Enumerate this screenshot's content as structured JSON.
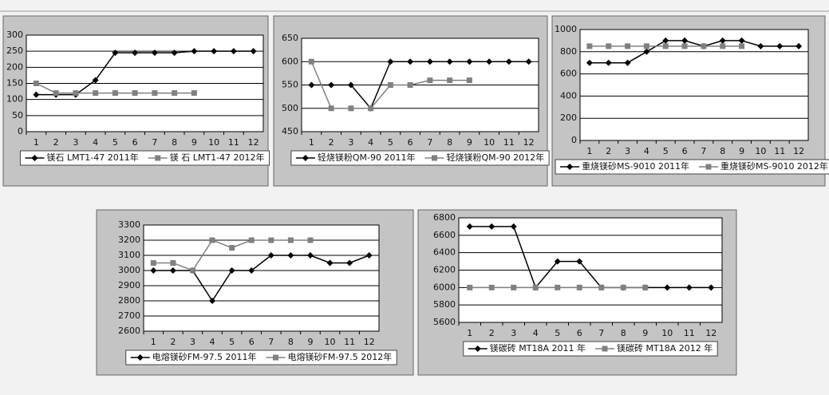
{
  "chart_data": [
    {
      "type": "line",
      "categories": [
        1,
        2,
        3,
        4,
        5,
        6,
        7,
        8,
        9,
        10,
        11,
        12
      ],
      "ylim": [
        0,
        300
      ],
      "yticks": [
        0,
        50,
        100,
        150,
        200,
        250,
        300
      ],
      "grid": true,
      "series": [
        {
          "name": "镁石 LMT1-47 2011年",
          "color": "#000000",
          "marker": "diamond",
          "values": [
            115,
            115,
            115,
            160,
            245,
            245,
            245,
            245,
            250,
            250,
            250,
            250
          ]
        },
        {
          "name": "镁 石 LMT1-47 2012年",
          "color": "#808080",
          "marker": "square",
          "values": [
            150,
            120,
            120,
            120,
            120,
            120,
            120,
            120,
            120,
            null,
            null,
            null
          ]
        }
      ]
    },
    {
      "type": "line",
      "categories": [
        1,
        2,
        3,
        4,
        5,
        6,
        7,
        8,
        9,
        10,
        11,
        12
      ],
      "ylim": [
        450,
        650
      ],
      "yticks": [
        450,
        500,
        550,
        600,
        650
      ],
      "grid": true,
      "series": [
        {
          "name": "轻烧镁粉QM-90 2011年",
          "color": "#000000",
          "marker": "diamond",
          "values": [
            550,
            550,
            550,
            500,
            600,
            600,
            600,
            600,
            600,
            600,
            600,
            600
          ]
        },
        {
          "name": "轻烧镁粉QM-90 2012年",
          "color": "#808080",
          "marker": "square",
          "values": [
            600,
            500,
            500,
            500,
            550,
            550,
            560,
            560,
            560,
            null,
            null,
            null
          ]
        }
      ]
    },
    {
      "type": "line",
      "categories": [
        1,
        2,
        3,
        4,
        5,
        6,
        7,
        8,
        9,
        10,
        11,
        12
      ],
      "ylim": [
        0,
        1000
      ],
      "yticks": [
        0,
        200,
        400,
        600,
        800,
        1000
      ],
      "grid": true,
      "series": [
        {
          "name": "重烧镁砂MS-9010 2011年",
          "color": "#000000",
          "marker": "diamond",
          "values": [
            700,
            700,
            700,
            800,
            900,
            900,
            850,
            900,
            900,
            850,
            850,
            850
          ]
        },
        {
          "name": "重烧镁砂MS-9010 2012年",
          "color": "#808080",
          "marker": "square",
          "values": [
            850,
            850,
            850,
            850,
            850,
            850,
            850,
            850,
            850,
            null,
            null,
            null
          ]
        }
      ]
    },
    {
      "type": "line",
      "categories": [
        1,
        2,
        3,
        4,
        5,
        6,
        7,
        8,
        9,
        10,
        11,
        12
      ],
      "ylim": [
        2600,
        3300
      ],
      "yticks": [
        2600,
        2700,
        2800,
        2900,
        3000,
        3100,
        3200,
        3300
      ],
      "grid": true,
      "series": [
        {
          "name": "电熔镁砂FM-97.5 2011年",
          "color": "#000000",
          "marker": "diamond",
          "values": [
            3000,
            3000,
            3000,
            2800,
            3000,
            3000,
            3100,
            3100,
            3100,
            3050,
            3050,
            3100
          ]
        },
        {
          "name": "电熔镁砂FM-97.5 2012年",
          "color": "#808080",
          "marker": "square",
          "values": [
            3050,
            3050,
            3000,
            3200,
            3150,
            3200,
            3200,
            3200,
            3200,
            null,
            null,
            null
          ]
        }
      ]
    },
    {
      "type": "line",
      "categories": [
        1,
        2,
        3,
        4,
        5,
        6,
        7,
        8,
        9,
        10,
        11,
        12
      ],
      "ylim": [
        5600,
        6800
      ],
      "yticks": [
        5600,
        5800,
        6000,
        6200,
        6400,
        6600,
        6800
      ],
      "grid": true,
      "series": [
        {
          "name": "镁碳砖 MT18A 2011 年",
          "color": "#000000",
          "marker": "diamond",
          "values": [
            6700,
            6700,
            6700,
            6000,
            6300,
            6300,
            6000,
            6000,
            6000,
            6000,
            6000,
            6000
          ]
        },
        {
          "name": "镁碳砖 MT18A 2012 年",
          "color": "#808080",
          "marker": "square",
          "values": [
            6000,
            6000,
            6000,
            6000,
            6000,
            6000,
            6000,
            6000,
            6000,
            null,
            null,
            null
          ]
        }
      ]
    }
  ]
}
